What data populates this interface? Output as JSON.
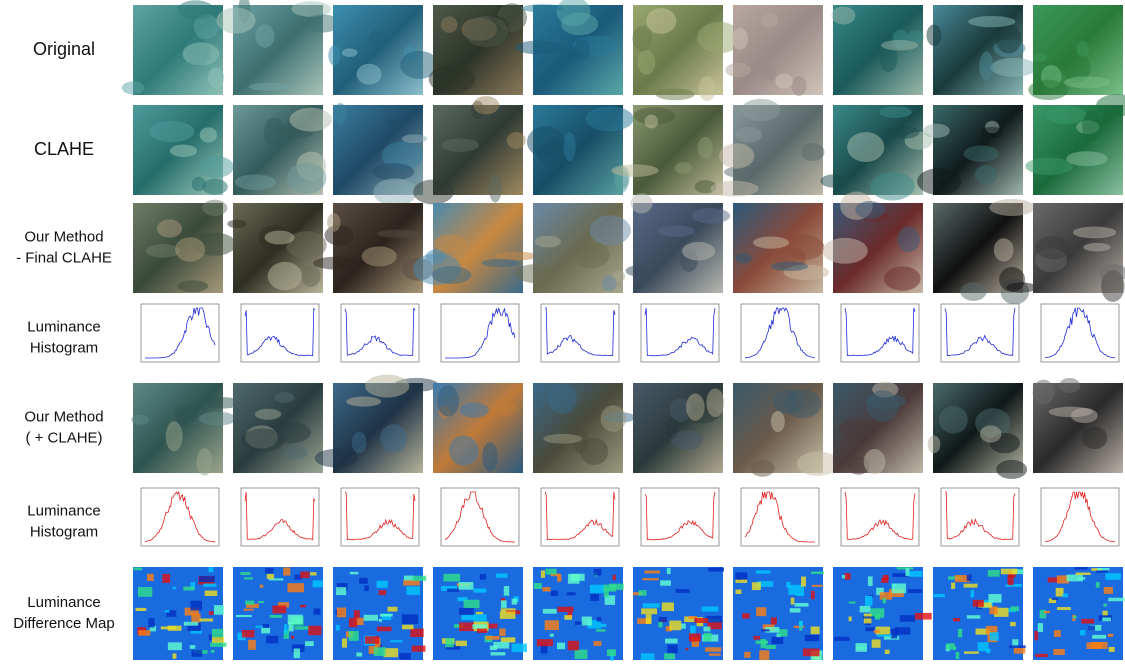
{
  "rows": [
    {
      "label": [
        "Original"
      ]
    },
    {
      "label": [
        "CLAHE"
      ]
    },
    {
      "label": [
        "Our Method",
        "- Final CLAHE"
      ]
    },
    {
      "label": [
        "Luminance",
        "Histogram"
      ]
    },
    {
      "label": [
        "Our Method",
        "( + CLAHE)"
      ]
    },
    {
      "label": [
        "Luminance",
        "Histogram"
      ]
    },
    {
      "label": [
        "Luminance",
        "Difference Map"
      ]
    }
  ]
}
